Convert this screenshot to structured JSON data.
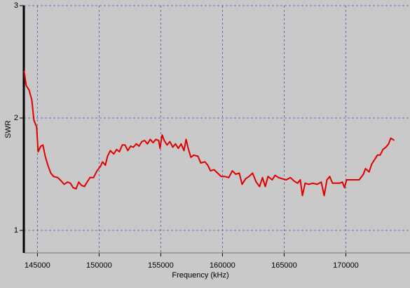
{
  "chart_data": {
    "type": "line",
    "xlabel": "Frequency (kHz)",
    "ylabel": "SWR",
    "xlim": [
      143900,
      175200
    ],
    "ylim": [
      0.8,
      3
    ],
    "xticks": [
      145000,
      150000,
      155000,
      160000,
      165000,
      170000
    ],
    "yticks": [
      1,
      2,
      3
    ],
    "grid": true,
    "series": [
      {
        "color": "#e00000",
        "x": [
          143920,
          144090,
          144320,
          144550,
          144720,
          144940,
          145060,
          145280,
          145450,
          145630,
          145850,
          146080,
          146310,
          146650,
          146930,
          147160,
          147440,
          147670,
          147900,
          148130,
          148350,
          148580,
          148810,
          149030,
          149260,
          149550,
          149830,
          150110,
          150280,
          150510,
          150680,
          150910,
          151190,
          151420,
          151650,
          151880,
          152100,
          152330,
          152560,
          152780,
          153010,
          153240,
          153470,
          153690,
          153920,
          154150,
          154380,
          154600,
          154830,
          154940,
          155110,
          155280,
          155510,
          155740,
          155970,
          156190,
          156420,
          156650,
          156880,
          157050,
          157220,
          157440,
          157670,
          158010,
          158240,
          158580,
          158810,
          159030,
          159320,
          159600,
          159890,
          160170,
          160510,
          160800,
          161080,
          161360,
          161590,
          161880,
          162160,
          162440,
          162730,
          163010,
          163240,
          163470,
          163690,
          164030,
          164260,
          164550,
          164830,
          165170,
          165510,
          165800,
          166080,
          166310,
          166480,
          166700,
          166990,
          167330,
          167670,
          168010,
          168240,
          168470,
          168690,
          168920,
          169150,
          169490,
          169720,
          169890,
          170060,
          170400,
          170740,
          171080,
          171420,
          171590,
          171880,
          172100,
          172330,
          172560,
          172780,
          173010,
          173240,
          173470,
          173640,
          173810,
          173920
        ],
        "values": [
          2.42,
          2.29,
          2.25,
          2.16,
          1.98,
          1.92,
          1.7,
          1.75,
          1.76,
          1.66,
          1.58,
          1.51,
          1.48,
          1.47,
          1.44,
          1.41,
          1.43,
          1.42,
          1.38,
          1.37,
          1.43,
          1.4,
          1.39,
          1.43,
          1.47,
          1.47,
          1.53,
          1.57,
          1.61,
          1.58,
          1.66,
          1.71,
          1.68,
          1.72,
          1.7,
          1.76,
          1.76,
          1.71,
          1.75,
          1.74,
          1.77,
          1.75,
          1.79,
          1.8,
          1.77,
          1.81,
          1.78,
          1.81,
          1.8,
          1.73,
          1.85,
          1.8,
          1.76,
          1.79,
          1.74,
          1.77,
          1.73,
          1.77,
          1.71,
          1.81,
          1.73,
          1.65,
          1.67,
          1.66,
          1.6,
          1.61,
          1.58,
          1.53,
          1.54,
          1.51,
          1.48,
          1.48,
          1.47,
          1.53,
          1.5,
          1.51,
          1.41,
          1.46,
          1.48,
          1.51,
          1.43,
          1.39,
          1.47,
          1.39,
          1.48,
          1.45,
          1.49,
          1.47,
          1.46,
          1.45,
          1.47,
          1.44,
          1.42,
          1.45,
          1.31,
          1.42,
          1.41,
          1.42,
          1.41,
          1.43,
          1.31,
          1.45,
          1.48,
          1.42,
          1.42,
          1.42,
          1.43,
          1.38,
          1.45,
          1.45,
          1.45,
          1.45,
          1.5,
          1.55,
          1.52,
          1.59,
          1.63,
          1.67,
          1.67,
          1.72,
          1.74,
          1.77,
          1.82,
          1.81,
          1.8
        ]
      }
    ]
  }
}
